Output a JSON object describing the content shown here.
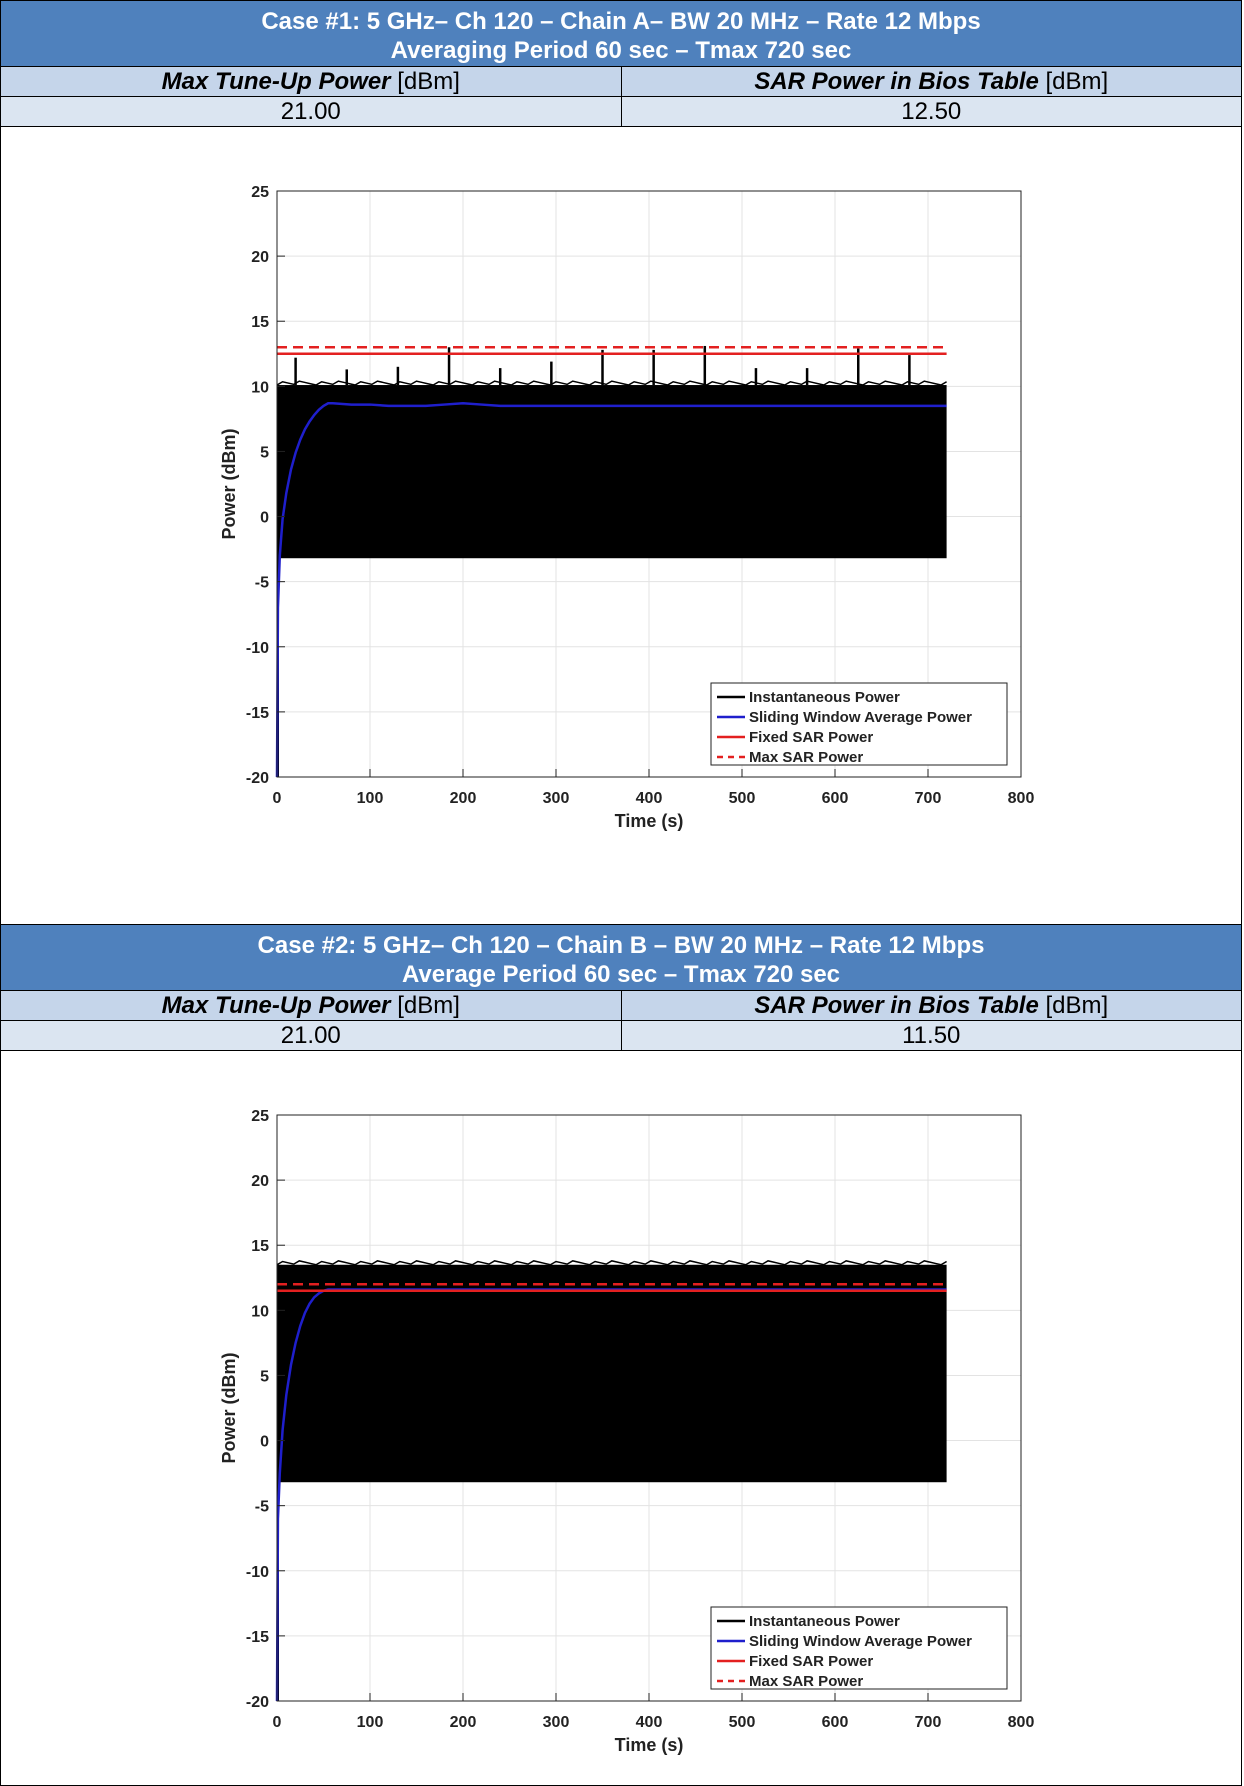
{
  "cases": [
    {
      "title_line1": "Case #1: 5 GHz– Ch 120 – Chain A– BW 20 MHz – Rate 12 Mbps",
      "title_line2": "Averaging Period 60 sec – Tmax 720 sec",
      "col1_label_bold": "Max Tune-Up Power",
      "col1_label_unit": " [dBm]",
      "col2_label_bold": "SAR Power in Bios Table",
      "col2_label_unit": " [dBm]",
      "col1_value": "21.00",
      "col2_value": "12.50"
    },
    {
      "title_line1": "Case #2: 5 GHz– Ch 120 – Chain B – BW 20 MHz – Rate 12 Mbps",
      "title_line2": "Average Period 60 sec – Tmax 720 sec",
      "col1_label_bold": "Max Tune-Up Power",
      "col1_label_unit": " [dBm]",
      "col2_label_bold": "SAR Power in Bios Table",
      "col2_label_unit": " [dBm]",
      "col1_value": "21.00",
      "col2_value": "11.50"
    }
  ],
  "colors": {
    "header_bg": "#4f81bd",
    "label_row_bg": "#c5d5ea",
    "value_row_bg": "#dbe5f1",
    "instantaneous": "#000000",
    "sliding": "#1f1fcc",
    "fixed_sar": "#e32020",
    "max_sar": "#e32020"
  },
  "chart_data": [
    {
      "type": "line",
      "xlabel": "Time (s)",
      "ylabel": "Power (dBm)",
      "xlim": [
        0,
        800
      ],
      "ylim": [
        -20,
        25
      ],
      "xticks": [
        0,
        100,
        200,
        300,
        400,
        500,
        600,
        700,
        800
      ],
      "yticks": [
        -20,
        -15,
        -10,
        -5,
        0,
        5,
        10,
        15,
        20,
        25
      ],
      "grid": true,
      "legend_position": "bottom-right",
      "series": [
        {
          "name": "Instantaneous Power",
          "style": "solid",
          "color": "#000000",
          "band_low": -3.2,
          "band_high": 10.1,
          "x_end": 720,
          "spikes": [
            [
              20,
              12.2
            ],
            [
              75,
              11.3
            ],
            [
              130,
              11.5
            ],
            [
              185,
              13.0
            ],
            [
              240,
              11.4
            ],
            [
              295,
              11.9
            ],
            [
              350,
              12.8
            ],
            [
              405,
              12.8
            ],
            [
              460,
              13.1
            ],
            [
              515,
              11.4
            ],
            [
              570,
              11.4
            ],
            [
              625,
              12.9
            ],
            [
              680,
              12.4
            ]
          ]
        },
        {
          "name": "Sliding Window Average Power",
          "style": "solid",
          "color": "#1f1fcc",
          "x": [
            0,
            1,
            3,
            6,
            10,
            15,
            20,
            25,
            30,
            35,
            40,
            45,
            50,
            55,
            60,
            80,
            100,
            120,
            140,
            160,
            180,
            200,
            220,
            240,
            300,
            400,
            500,
            600,
            720
          ],
          "y": [
            -20,
            -7,
            -3.0,
            -0.2,
            1.8,
            3.6,
            4.9,
            5.9,
            6.7,
            7.3,
            7.8,
            8.2,
            8.5,
            8.7,
            8.7,
            8.6,
            8.6,
            8.5,
            8.5,
            8.5,
            8.6,
            8.7,
            8.6,
            8.5,
            8.5,
            8.5,
            8.5,
            8.5,
            8.5
          ]
        },
        {
          "name": "Fixed SAR Power",
          "style": "solid",
          "color": "#e32020",
          "x": [
            0,
            720
          ],
          "y": [
            12.5,
            12.5
          ]
        },
        {
          "name": "Max SAR Power",
          "style": "dashed",
          "color": "#e32020",
          "x": [
            0,
            720
          ],
          "y": [
            13.0,
            13.0
          ]
        }
      ]
    },
    {
      "type": "line",
      "xlabel": "Time (s)",
      "ylabel": "Power (dBm)",
      "xlim": [
        0,
        800
      ],
      "ylim": [
        -20,
        25
      ],
      "xticks": [
        0,
        100,
        200,
        300,
        400,
        500,
        600,
        700,
        800
      ],
      "yticks": [
        -20,
        -15,
        -10,
        -5,
        0,
        5,
        10,
        15,
        20,
        25
      ],
      "grid": true,
      "legend_position": "bottom-right",
      "series": [
        {
          "name": "Instantaneous Power",
          "style": "solid",
          "color": "#000000",
          "band_low": -3.2,
          "band_high": 13.5,
          "x_end": 720,
          "spikes": []
        },
        {
          "name": "Sliding Window Average Power",
          "style": "solid",
          "color": "#1f1fcc",
          "x": [
            0,
            1,
            3,
            6,
            10,
            15,
            20,
            25,
            30,
            35,
            40,
            45,
            50,
            55,
            60,
            100,
            200,
            300,
            400,
            500,
            600,
            720
          ],
          "y": [
            -20,
            -6,
            -2.5,
            0.8,
            3.5,
            5.8,
            7.5,
            8.8,
            9.8,
            10.5,
            11.0,
            11.3,
            11.5,
            11.6,
            11.6,
            11.6,
            11.6,
            11.6,
            11.6,
            11.6,
            11.6,
            11.6
          ]
        },
        {
          "name": "Fixed SAR Power",
          "style": "solid",
          "color": "#e32020",
          "x": [
            0,
            720
          ],
          "y": [
            11.5,
            11.5
          ]
        },
        {
          "name": "Max SAR Power",
          "style": "dashed",
          "color": "#e32020",
          "x": [
            0,
            720
          ],
          "y": [
            12.0,
            12.0
          ]
        }
      ]
    }
  ]
}
